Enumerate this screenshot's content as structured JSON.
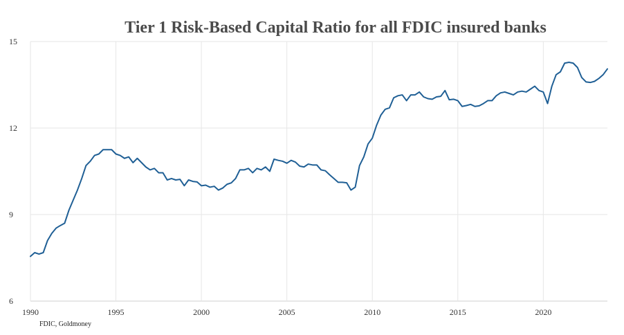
{
  "chart_data": {
    "type": "line",
    "title": "Tier 1 Risk-Based Capital Ratio for all FDIC insured banks",
    "xlabel": "",
    "ylabel": "",
    "xlim": [
      1990,
      2023.75
    ],
    "ylim": [
      6,
      15
    ],
    "x_ticks": [
      "1990",
      "1995",
      "2000",
      "2005",
      "2010",
      "2015",
      "2020"
    ],
    "y_ticks": [
      "6",
      "9",
      "12",
      "15"
    ],
    "grid": {
      "vertical": true,
      "horizontal": true
    },
    "legend": "none",
    "series": [
      {
        "color": "#1f5f95",
        "points": [
          [
            1990.0,
            7.55
          ],
          [
            1990.25,
            7.68
          ],
          [
            1990.5,
            7.63
          ],
          [
            1990.75,
            7.68
          ],
          [
            1991.0,
            8.1
          ],
          [
            1991.25,
            8.35
          ],
          [
            1991.5,
            8.53
          ],
          [
            1991.75,
            8.62
          ],
          [
            1992.0,
            8.7
          ],
          [
            1992.25,
            9.15
          ],
          [
            1992.5,
            9.5
          ],
          [
            1992.75,
            9.85
          ],
          [
            1993.0,
            10.25
          ],
          [
            1993.25,
            10.7
          ],
          [
            1993.5,
            10.85
          ],
          [
            1993.75,
            11.05
          ],
          [
            1994.0,
            11.1
          ],
          [
            1994.25,
            11.25
          ],
          [
            1994.5,
            11.25
          ],
          [
            1994.75,
            11.25
          ],
          [
            1995.0,
            11.1
          ],
          [
            1995.25,
            11.05
          ],
          [
            1995.5,
            10.95
          ],
          [
            1995.75,
            11.0
          ],
          [
            1996.0,
            10.8
          ],
          [
            1996.25,
            10.95
          ],
          [
            1996.5,
            10.8
          ],
          [
            1996.75,
            10.65
          ],
          [
            1997.0,
            10.55
          ],
          [
            1997.25,
            10.6
          ],
          [
            1997.5,
            10.45
          ],
          [
            1997.75,
            10.45
          ],
          [
            1998.0,
            10.2
          ],
          [
            1998.25,
            10.25
          ],
          [
            1998.5,
            10.2
          ],
          [
            1998.75,
            10.22
          ],
          [
            1999.0,
            10.0
          ],
          [
            1999.25,
            10.2
          ],
          [
            1999.5,
            10.15
          ],
          [
            1999.75,
            10.13
          ],
          [
            2000.0,
            10.0
          ],
          [
            2000.25,
            10.02
          ],
          [
            2000.5,
            9.95
          ],
          [
            2000.75,
            9.98
          ],
          [
            2001.0,
            9.85
          ],
          [
            2001.25,
            9.92
          ],
          [
            2001.5,
            10.05
          ],
          [
            2001.75,
            10.1
          ],
          [
            2002.0,
            10.25
          ],
          [
            2002.25,
            10.55
          ],
          [
            2002.5,
            10.55
          ],
          [
            2002.75,
            10.6
          ],
          [
            2003.0,
            10.45
          ],
          [
            2003.25,
            10.6
          ],
          [
            2003.5,
            10.55
          ],
          [
            2003.75,
            10.65
          ],
          [
            2004.0,
            10.5
          ],
          [
            2004.25,
            10.92
          ],
          [
            2004.5,
            10.88
          ],
          [
            2004.75,
            10.85
          ],
          [
            2005.0,
            10.78
          ],
          [
            2005.25,
            10.88
          ],
          [
            2005.5,
            10.82
          ],
          [
            2005.75,
            10.68
          ],
          [
            2006.0,
            10.65
          ],
          [
            2006.25,
            10.75
          ],
          [
            2006.5,
            10.72
          ],
          [
            2006.75,
            10.72
          ],
          [
            2007.0,
            10.55
          ],
          [
            2007.25,
            10.52
          ],
          [
            2007.5,
            10.38
          ],
          [
            2007.75,
            10.25
          ],
          [
            2008.0,
            10.12
          ],
          [
            2008.25,
            10.12
          ],
          [
            2008.5,
            10.1
          ],
          [
            2008.75,
            9.85
          ],
          [
            2009.0,
            9.95
          ],
          [
            2009.25,
            10.7
          ],
          [
            2009.5,
            11.0
          ],
          [
            2009.75,
            11.45
          ],
          [
            2010.0,
            11.65
          ],
          [
            2010.25,
            12.1
          ],
          [
            2010.5,
            12.45
          ],
          [
            2010.75,
            12.65
          ],
          [
            2011.0,
            12.7
          ],
          [
            2011.25,
            13.05
          ],
          [
            2011.5,
            13.12
          ],
          [
            2011.75,
            13.15
          ],
          [
            2012.0,
            12.95
          ],
          [
            2012.25,
            13.15
          ],
          [
            2012.5,
            13.15
          ],
          [
            2012.75,
            13.25
          ],
          [
            2013.0,
            13.08
          ],
          [
            2013.25,
            13.02
          ],
          [
            2013.5,
            13.0
          ],
          [
            2013.75,
            13.08
          ],
          [
            2014.0,
            13.1
          ],
          [
            2014.25,
            13.3
          ],
          [
            2014.5,
            12.98
          ],
          [
            2014.75,
            13.0
          ],
          [
            2015.0,
            12.95
          ],
          [
            2015.25,
            12.75
          ],
          [
            2015.5,
            12.78
          ],
          [
            2015.75,
            12.82
          ],
          [
            2016.0,
            12.75
          ],
          [
            2016.25,
            12.77
          ],
          [
            2016.5,
            12.85
          ],
          [
            2016.75,
            12.95
          ],
          [
            2017.0,
            12.95
          ],
          [
            2017.25,
            13.12
          ],
          [
            2017.5,
            13.22
          ],
          [
            2017.75,
            13.25
          ],
          [
            2018.0,
            13.2
          ],
          [
            2018.25,
            13.15
          ],
          [
            2018.5,
            13.25
          ],
          [
            2018.75,
            13.28
          ],
          [
            2019.0,
            13.25
          ],
          [
            2019.25,
            13.35
          ],
          [
            2019.5,
            13.45
          ],
          [
            2019.75,
            13.3
          ],
          [
            2020.0,
            13.25
          ],
          [
            2020.25,
            12.85
          ],
          [
            2020.5,
            13.45
          ],
          [
            2020.75,
            13.85
          ],
          [
            2021.0,
            13.95
          ],
          [
            2021.25,
            14.25
          ],
          [
            2021.5,
            14.28
          ],
          [
            2021.75,
            14.25
          ],
          [
            2022.0,
            14.1
          ],
          [
            2022.25,
            13.75
          ],
          [
            2022.5,
            13.6
          ],
          [
            2022.75,
            13.58
          ],
          [
            2023.0,
            13.62
          ],
          [
            2023.25,
            13.72
          ],
          [
            2023.5,
            13.85
          ],
          [
            2023.75,
            14.05
          ]
        ]
      }
    ],
    "source": "FDIC, Goldmoney"
  }
}
